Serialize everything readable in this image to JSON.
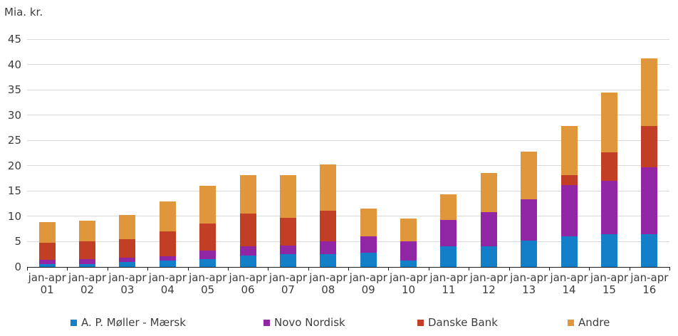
{
  "title": "Mia. kr.",
  "chart_data": {
    "type": "bar",
    "stacked": true,
    "title": "Mia. kr.",
    "x_period_label": "jan-apr",
    "categories": [
      "01",
      "02",
      "03",
      "04",
      "05",
      "06",
      "07",
      "08",
      "09",
      "10",
      "11",
      "12",
      "13",
      "14",
      "15",
      "16"
    ],
    "series": [
      {
        "name": "A. P. Møller - Mærsk",
        "color": "#137FC8",
        "values": [
          0.6,
          0.6,
          1.0,
          1.2,
          1.6,
          2.3,
          2.5,
          2.5,
          2.8,
          1.2,
          4.1,
          4.1,
          5.2,
          6.1,
          6.5,
          6.5
        ]
      },
      {
        "name": "Novo Nordisk",
        "color": "#9227A5",
        "values": [
          0.8,
          0.9,
          0.8,
          0.9,
          1.6,
          1.8,
          1.7,
          2.6,
          3.3,
          3.9,
          5.2,
          6.8,
          8.2,
          10.1,
          10.5,
          13.2
        ]
      },
      {
        "name": "Danske Bank",
        "color": "#C23E24",
        "values": [
          3.4,
          3.6,
          3.7,
          5.0,
          5.4,
          6.5,
          5.5,
          6.0,
          0,
          0,
          0,
          0,
          0,
          2.0,
          5.7,
          8.1
        ]
      },
      {
        "name": "Andre",
        "color": "#E0973C",
        "values": [
          4.1,
          4.1,
          4.8,
          5.8,
          7.4,
          7.5,
          8.5,
          9.2,
          5.5,
          4.4,
          5.0,
          7.6,
          9.4,
          9.6,
          11.8,
          13.4
        ]
      }
    ],
    "totals": [
      8.9,
      9.2,
      10.3,
      12.9,
      16.0,
      18.1,
      18.2,
      20.3,
      11.6,
      9.5,
      14.3,
      18.5,
      22.8,
      27.8,
      34.5,
      41.2
    ],
    "xlabel": "",
    "ylabel": "Mia. kr.",
    "ylim": [
      0,
      45
    ],
    "ytick_step": 5,
    "grid": true,
    "legend_position": "bottom"
  }
}
